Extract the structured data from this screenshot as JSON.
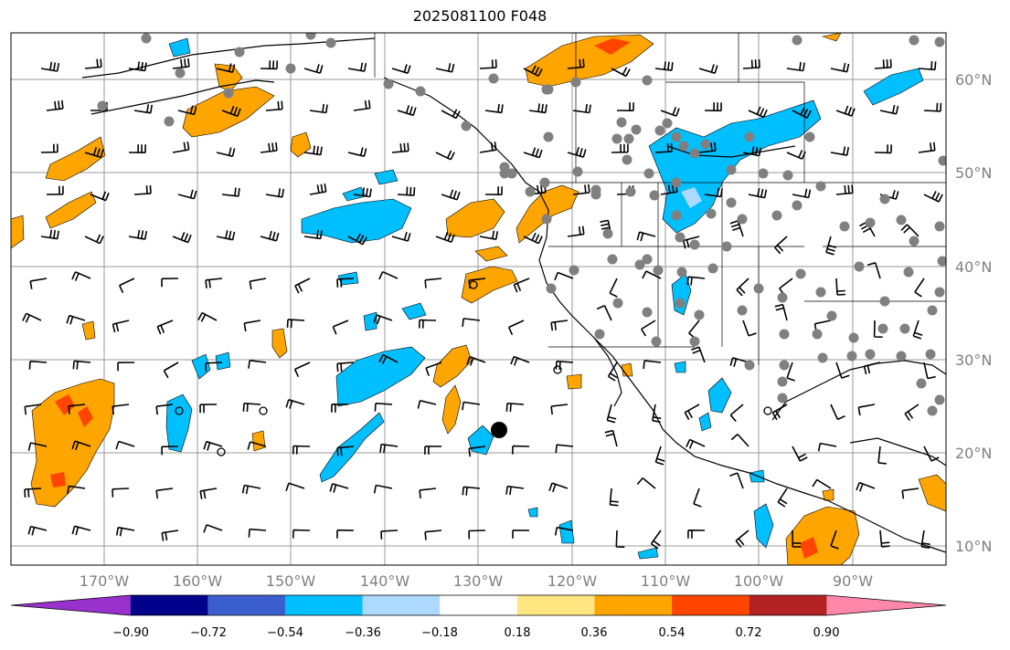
{
  "title": "2025081100 F048",
  "lat_labels": [
    "60°N",
    "50°N",
    "40°N",
    "30°N",
    "20°N",
    "10°N"
  ],
  "lon_labels": [
    "170°W",
    "160°W",
    "150°W",
    "140°W",
    "130°W",
    "120°W",
    "110°W",
    "100°W",
    "90°W"
  ],
  "colorbar": {
    "ticks": [
      "−0.90",
      "−0.72",
      "−0.54",
      "−0.36",
      "−0.18",
      "0.18",
      "0.36",
      "0.54",
      "0.72",
      "0.90"
    ],
    "colors": [
      "#9932cc",
      "#00008b",
      "#3a5fcd",
      "#00bfff",
      "#add8ff",
      "#ffffff",
      "#ffe680",
      "#ffa500",
      "#ff4500",
      "#b22222",
      "#ff88aa"
    ]
  },
  "legend_colors": {
    "orange": "#ffa500",
    "red_orange": "#ff4500",
    "sky_blue": "#00bfff",
    "station_gray": "#808080"
  }
}
